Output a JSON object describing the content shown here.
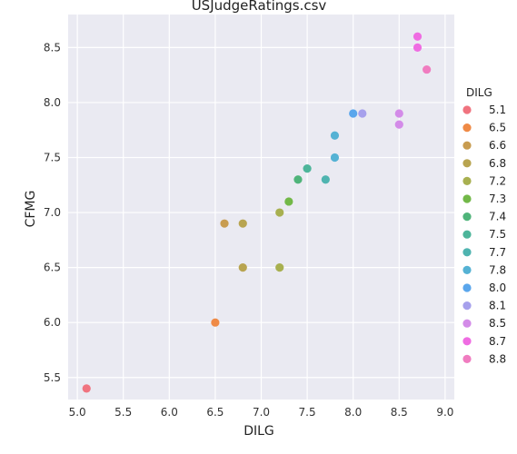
{
  "chart_data": {
    "type": "scatter",
    "title": "USJudgeRatings.csv",
    "xlabel": "DILG",
    "ylabel": "CFMG",
    "xlim": [
      4.9,
      9.1
    ],
    "ylim": [
      5.3,
      8.8
    ],
    "xticks": [
      "5.0",
      "5.5",
      "6.0",
      "6.5",
      "7.0",
      "7.5",
      "8.0",
      "8.5",
      "9.0"
    ],
    "yticks": [
      "5.5",
      "6.0",
      "6.5",
      "7.0",
      "7.5",
      "8.0",
      "8.5"
    ],
    "grid": true,
    "legend_position": "right",
    "legend_title": "DILG",
    "series": [
      {
        "name": "5.1",
        "color": "#f0737f",
        "points": [
          [
            5.1,
            5.4
          ]
        ]
      },
      {
        "name": "6.5",
        "color": "#ef8a46",
        "points": [
          [
            6.5,
            6.0
          ]
        ]
      },
      {
        "name": "6.6",
        "color": "#c89c50",
        "points": [
          [
            6.6,
            6.9
          ]
        ]
      },
      {
        "name": "6.8",
        "color": "#b8a450",
        "points": [
          [
            6.8,
            6.9
          ],
          [
            6.8,
            6.5
          ]
        ]
      },
      {
        "name": "7.2",
        "color": "#a8b050",
        "points": [
          [
            7.2,
            7.0
          ],
          [
            7.2,
            6.5
          ]
        ]
      },
      {
        "name": "7.3",
        "color": "#72b848",
        "points": [
          [
            7.3,
            7.1
          ]
        ]
      },
      {
        "name": "7.4",
        "color": "#4fb47a",
        "points": [
          [
            7.4,
            7.3
          ]
        ]
      },
      {
        "name": "7.5",
        "color": "#4db59a",
        "points": [
          [
            7.5,
            7.4
          ]
        ]
      },
      {
        "name": "7.7",
        "color": "#4fb4b0",
        "points": [
          [
            7.7,
            7.3
          ]
        ]
      },
      {
        "name": "7.8",
        "color": "#55b2d4",
        "points": [
          [
            7.8,
            7.7
          ],
          [
            7.8,
            7.5
          ]
        ]
      },
      {
        "name": "8.0",
        "color": "#5aa6ec",
        "points": [
          [
            8.0,
            7.9
          ]
        ]
      },
      {
        "name": "8.1",
        "color": "#a6a0ec",
        "points": [
          [
            8.1,
            7.9
          ]
        ]
      },
      {
        "name": "8.5",
        "color": "#d38be8",
        "points": [
          [
            8.5,
            7.9
          ],
          [
            8.5,
            7.8
          ]
        ]
      },
      {
        "name": "8.7",
        "color": "#ef6ce2",
        "points": [
          [
            8.7,
            8.6
          ],
          [
            8.7,
            8.5
          ]
        ]
      },
      {
        "name": "8.8",
        "color": "#f07cc0",
        "points": [
          [
            8.8,
            8.3
          ]
        ]
      }
    ]
  }
}
